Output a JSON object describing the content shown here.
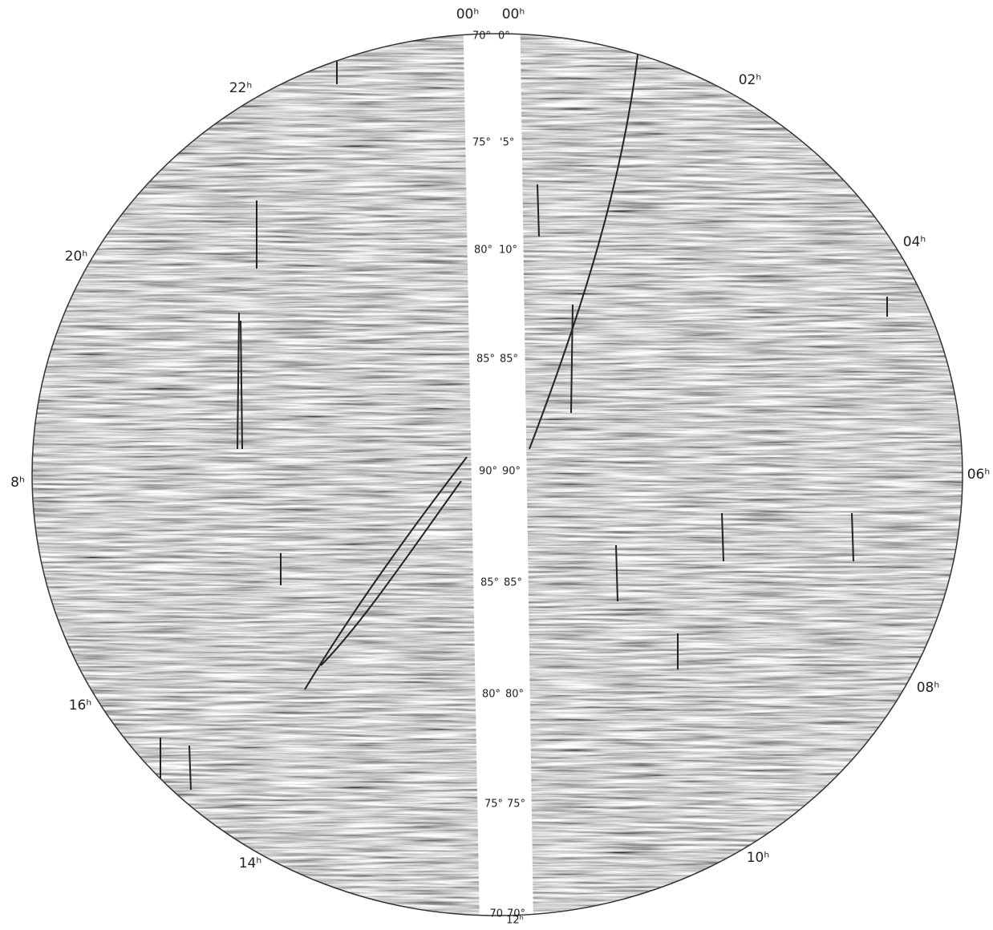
{
  "hour_labels": [
    "00ʰ",
    "00ʰ",
    "02ʰ",
    "04ʰ",
    "06ʰ",
    "08ʰ",
    "10ʰ",
    "12ʰ",
    "14ʰ",
    "16ʰ",
    "8ʰ",
    "20ʰ",
    "22ʰ"
  ],
  "left_scale": [
    "70°",
    "75°",
    "80°",
    "85°",
    "90°",
    "85°",
    "80°",
    "75°",
    "70"
  ],
  "right_scale": [
    "0°",
    "'5°",
    "10°",
    "85°",
    "90°",
    "85°",
    "80°",
    "75°",
    "70°"
  ]
}
